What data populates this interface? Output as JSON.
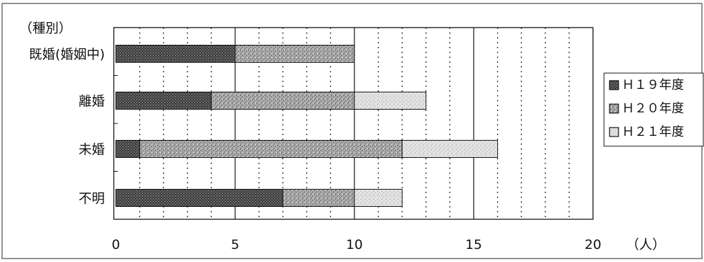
{
  "chart_data": {
    "type": "bar",
    "orientation": "horizontal",
    "stacked": true,
    "category_axis_title": "（種別）",
    "categories": [
      "既婚(婚姻中)",
      "離婚",
      "未婚",
      "不明"
    ],
    "series": [
      {
        "name": "Ｈ１９年度",
        "values": [
          5,
          4,
          1,
          7
        ],
        "color": "#3a3a3a",
        "pattern": "dense-dots"
      },
      {
        "name": "Ｈ２０年度",
        "values": [
          5,
          6,
          11,
          3
        ],
        "color": "#9a9a9a",
        "pattern": "speckle"
      },
      {
        "name": "Ｈ２１年度",
        "values": [
          0,
          3,
          4,
          2
        ],
        "color": "#d2d2d2",
        "pattern": "light-dots"
      }
    ],
    "x_ticks": [
      "0",
      "5",
      "10",
      "15",
      "20"
    ],
    "xlim": [
      0,
      20
    ],
    "x_unit": "（人）",
    "grid": {
      "major_every": 5,
      "minor_every": 1,
      "minor_style": "dotted"
    },
    "legend_position": "right"
  }
}
